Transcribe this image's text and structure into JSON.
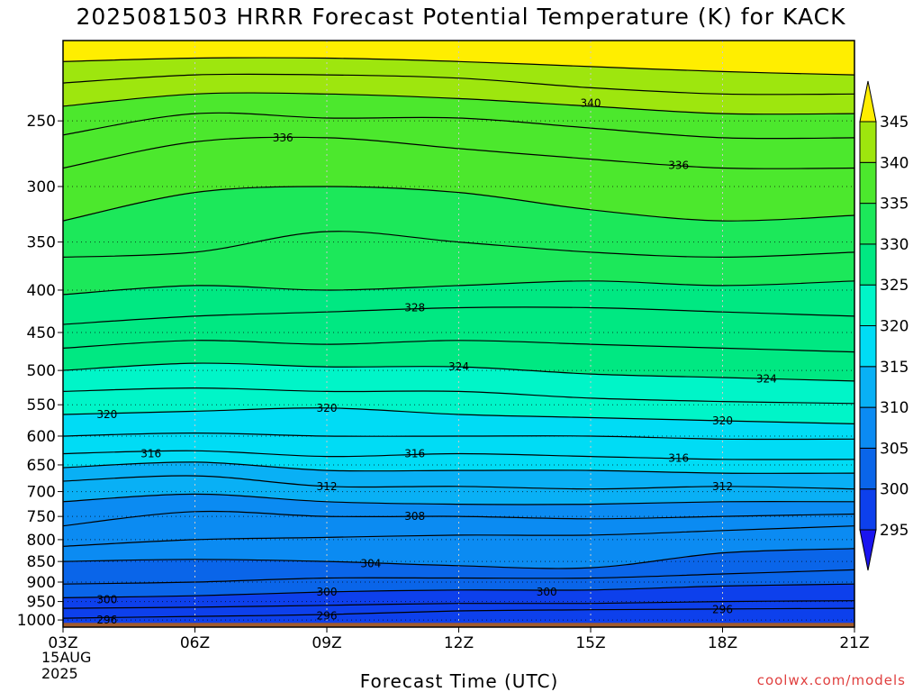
{
  "title": "2025081503 HRRR Forecast Potential Temperature (K) for KACK",
  "xlabel": "Forecast Time (UTC)",
  "watermark": "coolwx.com/models",
  "date_line1": "15AUG",
  "date_line2": "2025",
  "colors": {
    "ground": "#a05a2c",
    "contour": "#000000",
    "grid": "#808080"
  },
  "chart_data": {
    "type": "heatmap",
    "title": "2025081503 HRRR Forecast Potential Temperature (K) for KACK",
    "xlabel": "Forecast Time (UTC)",
    "ylabel": "",
    "x_ticks": [
      "03Z",
      "06Z",
      "09Z",
      "12Z",
      "15Z",
      "18Z",
      "21Z"
    ],
    "x_tick_hours": [
      3,
      6,
      9,
      12,
      15,
      18,
      21
    ],
    "xlim": [
      3,
      21
    ],
    "y_ticks": [
      250,
      300,
      350,
      400,
      450,
      500,
      550,
      600,
      650,
      700,
      750,
      800,
      850,
      900,
      950,
      1000
    ],
    "y_scale": "log-pressure (inverted)",
    "ylim": [
      1020,
      200
    ],
    "ground_top_hpa": 1008,
    "grid": true,
    "colorbar": {
      "levels": [
        295,
        300,
        305,
        310,
        315,
        320,
        325,
        330,
        335,
        340,
        345
      ],
      "labels": [
        "295",
        "300",
        "305",
        "310",
        "315",
        "320",
        "325",
        "330",
        "335",
        "340",
        "345"
      ],
      "colors": [
        "#1a14f0",
        "#0d40ec",
        "#0a65e9",
        "#0b8bf2",
        "#09b0f5",
        "#00dcf5",
        "#00f5c8",
        "#00e882",
        "#1ce85a",
        "#4ce82d",
        "#9ee60e",
        "#d4f200",
        "#ffee00"
      ],
      "extend": "both"
    },
    "contour_interval": 2,
    "contours": [
      {
        "value": 296,
        "x": [
          3,
          6,
          9,
          12,
          15,
          18,
          21
        ],
        "p": [
          995,
          990,
          985,
          975,
          972,
          970,
          968
        ]
      },
      {
        "value": 298,
        "x": [
          3,
          6,
          9,
          12,
          15,
          18,
          21
        ],
        "p": [
          968,
          965,
          960,
          955,
          955,
          950,
          948
        ]
      },
      {
        "value": 300,
        "x": [
          3,
          6,
          9,
          12,
          15,
          18,
          21
        ],
        "p": [
          940,
          935,
          925,
          920,
          920,
          910,
          905
        ]
      },
      {
        "value": 302,
        "x": [
          3,
          6,
          9,
          12,
          15,
          18,
          21
        ],
        "p": [
          905,
          900,
          890,
          890,
          890,
          880,
          870
        ]
      },
      {
        "value": 304,
        "x": [
          3,
          6,
          9,
          12,
          15,
          18,
          21
        ],
        "p": [
          850,
          845,
          850,
          860,
          865,
          830,
          820
        ]
      },
      {
        "value": 306,
        "x": [
          3,
          6,
          9,
          12,
          15,
          18,
          21
        ],
        "p": [
          815,
          800,
          795,
          790,
          790,
          780,
          770
        ]
      },
      {
        "value": 308,
        "x": [
          3,
          6,
          9,
          12,
          15,
          18,
          21
        ],
        "p": [
          770,
          740,
          750,
          750,
          755,
          750,
          745
        ]
      },
      {
        "value": 310,
        "x": [
          3,
          6,
          9,
          12,
          15,
          18,
          21
        ],
        "p": [
          720,
          705,
          720,
          725,
          725,
          720,
          720
        ]
      },
      {
        "value": 312,
        "x": [
          3,
          6,
          9,
          12,
          15,
          18,
          21
        ],
        "p": [
          680,
          670,
          690,
          690,
          695,
          690,
          695
        ]
      },
      {
        "value": 314,
        "x": [
          3,
          6,
          9,
          12,
          15,
          18,
          21
        ],
        "p": [
          655,
          645,
          660,
          660,
          660,
          665,
          665
        ]
      },
      {
        "value": 316,
        "x": [
          3,
          6,
          9,
          12,
          15,
          18,
          21
        ],
        "p": [
          630,
          625,
          635,
          630,
          635,
          640,
          640
        ]
      },
      {
        "value": 318,
        "x": [
          3,
          6,
          9,
          12,
          15,
          18,
          21
        ],
        "p": [
          600,
          595,
          600,
          600,
          600,
          605,
          605
        ]
      },
      {
        "value": 320,
        "x": [
          3,
          6,
          9,
          12,
          15,
          18,
          21
        ],
        "p": [
          565,
          560,
          555,
          565,
          570,
          575,
          580
        ]
      },
      {
        "value": 322,
        "x": [
          3,
          6,
          9,
          12,
          15,
          18,
          21
        ],
        "p": [
          530,
          525,
          530,
          530,
          540,
          545,
          548
        ]
      },
      {
        "value": 324,
        "x": [
          3,
          6,
          9,
          12,
          15,
          18,
          21
        ],
        "p": [
          500,
          490,
          495,
          495,
          505,
          510,
          515
        ]
      },
      {
        "value": 326,
        "x": [
          3,
          6,
          9,
          12,
          15,
          18,
          21
        ],
        "p": [
          470,
          460,
          465,
          460,
          465,
          470,
          475
        ]
      },
      {
        "value": 328,
        "x": [
          3,
          6,
          9,
          12,
          15,
          18,
          21
        ],
        "p": [
          440,
          430,
          425,
          420,
          420,
          425,
          430
        ]
      },
      {
        "value": 330,
        "x": [
          3,
          6,
          9,
          12,
          15,
          18,
          21
        ],
        "p": [
          405,
          395,
          400,
          395,
          390,
          395,
          390
        ]
      },
      {
        "value": 332,
        "x": [
          3,
          6,
          9,
          12,
          15,
          18,
          21
        ],
        "p": [
          365,
          360,
          340,
          350,
          360,
          365,
          360
        ]
      },
      {
        "value": 334,
        "x": [
          3,
          6,
          9,
          12,
          15,
          18,
          21
        ],
        "p": [
          330,
          305,
          300,
          305,
          320,
          330,
          325
        ]
      },
      {
        "value": 336,
        "x": [
          3,
          6,
          9,
          12,
          15,
          18,
          21
        ],
        "p": [
          285,
          265,
          262,
          270,
          278,
          285,
          285
        ]
      },
      {
        "value": 338,
        "x": [
          3,
          6,
          9,
          12,
          15,
          18,
          21
        ],
        "p": [
          260,
          245,
          248,
          248,
          255,
          262,
          262
        ]
      },
      {
        "value": 340,
        "x": [
          3,
          6,
          9,
          12,
          15,
          18,
          21
        ],
        "p": [
          240,
          232,
          232,
          235,
          240,
          245,
          245
        ]
      },
      {
        "value": 342,
        "x": [
          3,
          6,
          9,
          12,
          15,
          18,
          21
        ],
        "p": [
          225,
          220,
          220,
          222,
          228,
          232,
          232
        ]
      },
      {
        "value": 344,
        "x": [
          3,
          6,
          9,
          12,
          15,
          18,
          21
        ],
        "p": [
          212,
          210,
          210,
          212,
          215,
          218,
          220
        ]
      }
    ],
    "contour_labels": [
      {
        "text": "296",
        "x": 4.0,
        "p": 1000
      },
      {
        "text": "296",
        "x": 9.0,
        "p": 988
      },
      {
        "text": "296",
        "x": 18.0,
        "p": 972
      },
      {
        "text": "300",
        "x": 4.0,
        "p": 945
      },
      {
        "text": "300",
        "x": 9.0,
        "p": 925
      },
      {
        "text": "300",
        "x": 14.0,
        "p": 925
      },
      {
        "text": "304",
        "x": 10.0,
        "p": 855
      },
      {
        "text": "308",
        "x": 11.0,
        "p": 750
      },
      {
        "text": "312",
        "x": 9.0,
        "p": 690
      },
      {
        "text": "312",
        "x": 18.0,
        "p": 690
      },
      {
        "text": "316",
        "x": 5.0,
        "p": 630
      },
      {
        "text": "316",
        "x": 11.0,
        "p": 630
      },
      {
        "text": "316",
        "x": 17.0,
        "p": 638
      },
      {
        "text": "320",
        "x": 4.0,
        "p": 565
      },
      {
        "text": "320",
        "x": 9.0,
        "p": 555
      },
      {
        "text": "320",
        "x": 18.0,
        "p": 575
      },
      {
        "text": "324",
        "x": 12.0,
        "p": 495
      },
      {
        "text": "324",
        "x": 19.0,
        "p": 512
      },
      {
        "text": "328",
        "x": 11.0,
        "p": 420
      },
      {
        "text": "336",
        "x": 8.0,
        "p": 262
      },
      {
        "text": "336",
        "x": 17.0,
        "p": 283
      },
      {
        "text": "340",
        "x": 15.0,
        "p": 238
      }
    ]
  }
}
